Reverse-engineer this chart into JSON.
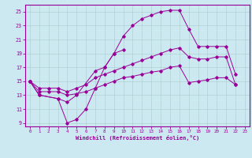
{
  "xlabel": "Windchill (Refroidissement éolien,°C)",
  "background_color": "#cce8f0",
  "line_color": "#990099",
  "grid_color": "#aacccc",
  "xlim": [
    -0.5,
    23.5
  ],
  "ylim": [
    8.5,
    26
  ],
  "yticks": [
    9,
    11,
    13,
    15,
    17,
    19,
    21,
    23,
    25
  ],
  "xticks": [
    0,
    1,
    2,
    3,
    4,
    5,
    6,
    7,
    8,
    9,
    10,
    11,
    12,
    13,
    14,
    15,
    16,
    17,
    18,
    19,
    20,
    21,
    22,
    23
  ],
  "c1x": [
    0,
    1,
    3,
    4,
    5,
    6,
    7,
    8,
    9,
    10
  ],
  "c1y": [
    15,
    13,
    12.5,
    9,
    9.5,
    11,
    14,
    17,
    19,
    19.5
  ],
  "c2x": [
    0,
    1,
    3,
    4,
    5,
    7,
    8,
    9,
    10,
    11,
    12,
    13,
    14,
    15,
    16,
    17,
    18,
    19,
    20,
    21,
    22
  ],
  "c2y": [
    15,
    13,
    12.5,
    12,
    13,
    16.5,
    17,
    19,
    21.5,
    23,
    24,
    24.5,
    25,
    25.2,
    25.2,
    22.5,
    20,
    20,
    20,
    20,
    16
  ],
  "c3x": [
    0,
    1,
    2,
    3,
    4,
    5,
    6,
    7,
    8,
    9,
    10,
    11,
    12,
    13,
    14,
    15,
    16,
    17,
    18,
    19,
    20,
    21,
    22
  ],
  "c3y": [
    15,
    14,
    14,
    14,
    13.5,
    14,
    14.5,
    15.5,
    16,
    16.5,
    17,
    17.5,
    18,
    18.5,
    19,
    19.5,
    19.8,
    18.5,
    18.2,
    18.2,
    18.5,
    18.5,
    14.5
  ],
  "c4x": [
    0,
    1,
    2,
    3,
    4,
    5,
    6,
    7,
    8,
    9,
    10,
    11,
    12,
    13,
    14,
    15,
    16,
    17,
    18,
    19,
    20,
    21,
    22
  ],
  "c4y": [
    15,
    13.5,
    13.5,
    13.5,
    13,
    13.2,
    13.5,
    14,
    14.5,
    15,
    15.5,
    15.7,
    16,
    16.3,
    16.5,
    17,
    17.2,
    14.8,
    15.0,
    15.2,
    15.5,
    15.5,
    14.5
  ]
}
